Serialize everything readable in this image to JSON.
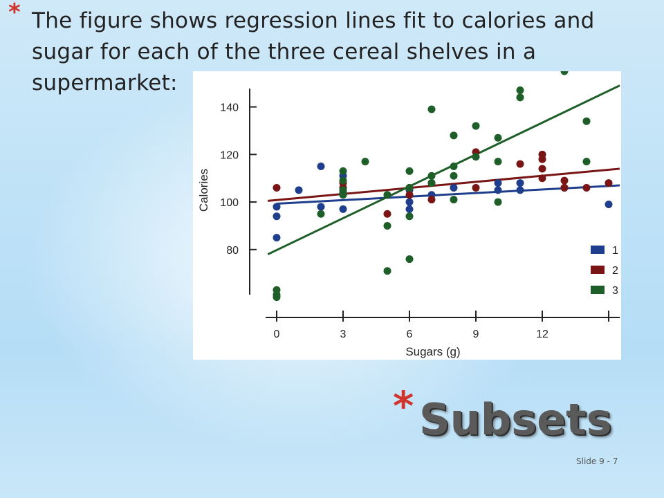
{
  "slide": {
    "bullet_text": "The figure shows regression lines fit to calories and sugar for each of the three cereal shelves in a supermarket:",
    "title": "Subsets",
    "footer": "Slide 9 - 7",
    "bullet_symbol": "*"
  },
  "colors": {
    "star": "#d0342c",
    "shelf1": "#1f3f8c",
    "shelf2": "#7a1515",
    "shelf3": "#1e5e28"
  },
  "chart_data": {
    "type": "scatter",
    "xlabel": "Sugars (g)",
    "ylabel": "Calories",
    "xlim": [
      -0.5,
      15.5
    ],
    "ylim": [
      59,
      155
    ],
    "x_ticks": [
      0,
      3,
      6,
      9,
      12,
      15
    ],
    "x_tick_labels": [
      "0",
      "3",
      "6",
      "9",
      "12",
      ""
    ],
    "y_ticks": [
      80,
      100,
      120,
      140
    ],
    "y_tick_labels": [
      "80",
      "100",
      "120",
      "140"
    ],
    "grid": false,
    "legend": "bottom-right",
    "series": [
      {
        "name": "1",
        "color": "#1f3f8c",
        "points": [
          [
            0,
            98
          ],
          [
            0,
            94
          ],
          [
            0,
            85
          ],
          [
            1,
            105
          ],
          [
            2,
            115
          ],
          [
            2,
            98
          ],
          [
            3,
            111
          ],
          [
            3,
            104
          ],
          [
            3,
            97
          ],
          [
            5,
            103
          ],
          [
            6,
            100
          ],
          [
            6,
            97
          ],
          [
            6,
            105
          ],
          [
            7,
            103
          ],
          [
            8,
            106
          ],
          [
            10,
            108
          ],
          [
            10,
            105
          ],
          [
            11,
            108
          ],
          [
            11,
            105
          ],
          [
            13,
            106
          ],
          [
            15,
            99
          ]
        ],
        "line": [
          [
            0,
            99.3
          ],
          [
            15.5,
            107
          ]
        ]
      },
      {
        "name": "2",
        "color": "#7a1515",
        "points": [
          [
            0,
            106
          ],
          [
            3,
            108
          ],
          [
            3,
            106
          ],
          [
            5,
            95
          ],
          [
            6,
            103
          ],
          [
            6,
            106
          ],
          [
            7,
            108
          ],
          [
            7,
            101
          ],
          [
            9,
            121
          ],
          [
            9,
            106
          ],
          [
            11,
            116
          ],
          [
            12,
            120
          ],
          [
            12,
            118
          ],
          [
            12,
            114
          ],
          [
            12,
            110
          ],
          [
            13,
            109
          ],
          [
            13,
            106
          ],
          [
            14,
            106
          ],
          [
            15,
            108
          ]
        ],
        "line": [
          [
            -0.4,
            100.5
          ],
          [
            15.5,
            114
          ]
        ]
      },
      {
        "name": "3",
        "color": "#1e5e28",
        "points": [
          [
            0,
            63
          ],
          [
            0,
            61
          ],
          [
            0,
            60
          ],
          [
            2,
            95
          ],
          [
            3,
            113
          ],
          [
            3,
            109
          ],
          [
            3,
            105
          ],
          [
            3,
            103
          ],
          [
            4,
            117
          ],
          [
            5,
            103
          ],
          [
            5,
            90
          ],
          [
            5,
            71
          ],
          [
            6,
            113
          ],
          [
            6,
            106
          ],
          [
            6,
            94
          ],
          [
            6,
            76
          ],
          [
            7,
            139
          ],
          [
            7,
            111
          ],
          [
            7,
            108
          ],
          [
            8,
            128
          ],
          [
            8,
            115
          ],
          [
            8,
            111
          ],
          [
            8,
            101
          ],
          [
            9,
            132
          ],
          [
            9,
            119
          ],
          [
            10,
            127
          ],
          [
            10,
            117
          ],
          [
            10,
            100
          ],
          [
            11,
            147
          ],
          [
            11,
            144
          ],
          [
            13,
            155
          ],
          [
            14,
            134
          ],
          [
            14,
            117
          ]
        ],
        "line": [
          [
            -0.4,
            78
          ],
          [
            15.5,
            149
          ]
        ]
      }
    ]
  }
}
